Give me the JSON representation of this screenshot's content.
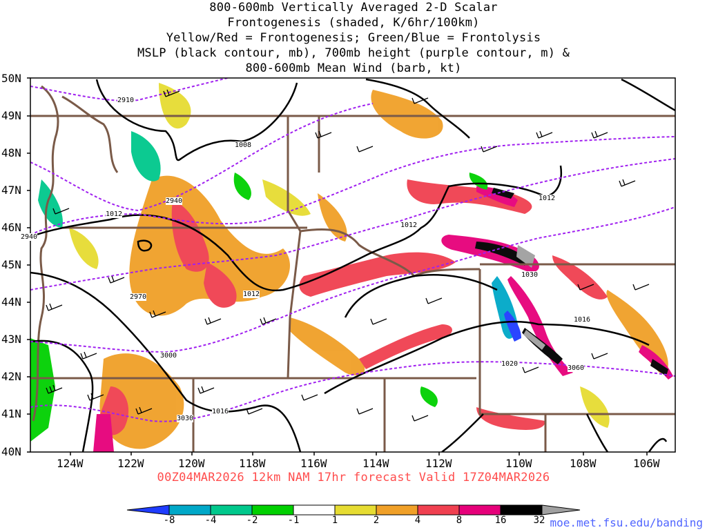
{
  "title_lines": [
    "800-600mb Vertically Averaged 2-D Scalar",
    "Frontogenesis (shaded, K/6hr/100km)",
    "Yellow/Red = Frontogenesis;  Green/Blue = Frontolysis",
    "MSLP (black contour, mb), 700mb height (purple contour, m) &",
    "800-600mb Mean Wind (barb, kt)"
  ],
  "lat_labels": [
    "50N",
    "49N",
    "48N",
    "47N",
    "46N",
    "45N",
    "44N",
    "43N",
    "42N",
    "41N",
    "40N"
  ],
  "lon_labels": [
    "124W",
    "122W",
    "120W",
    "118W",
    "116W",
    "114W",
    "112W",
    "110W",
    "108W",
    "106W"
  ],
  "valid_text": "00Z04MAR2026 12km NAM 17hr forecast Valid 17Z04MAR2026",
  "credit": "moe.met.fsu.edu/banding",
  "colorbar": {
    "labels": [
      "-8",
      "-4",
      "-2",
      "-1",
      "1",
      "2",
      "4",
      "8",
      "16",
      "32"
    ],
    "colors": [
      "#1f3cff",
      "#00a8c8",
      "#00c88c",
      "#00d000",
      "#ffffff",
      "#e6dc32",
      "#f0a028",
      "#f04050",
      "#e6007a",
      "#000000",
      "#a0a0a0"
    ]
  },
  "mslp_labels": [
    "1008",
    "1012",
    "1012",
    "1012",
    "1012",
    "1016",
    "1016",
    "1020",
    "1030"
  ],
  "height_labels": [
    "2910",
    "2940",
    "2970",
    "3000",
    "3030",
    "3060",
    "2940"
  ],
  "colors": {
    "mslp": "#000000",
    "height": "#a020f0",
    "borders": "#7a5a48",
    "footer": "#ff4c4c",
    "credit": "#4f64ff"
  }
}
